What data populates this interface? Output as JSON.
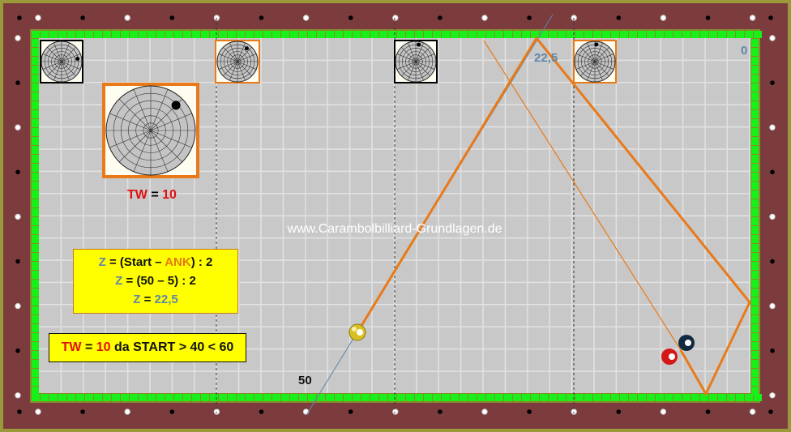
{
  "watermark": "www.Carambolbilliard-Grundlagen.de",
  "labels": {
    "target": "22,5",
    "zero": "0",
    "start": "50"
  },
  "tw_label": {
    "tw": "TW",
    "eq": " = ",
    "value": "10"
  },
  "formula_box": {
    "line1": {
      "z": "Z",
      "a": " = (Start – ",
      "ank": "ANK",
      "b": ") : 2"
    },
    "line2": {
      "z": "Z",
      "a": " = (50 – 5) : 2"
    },
    "line3": {
      "z": "Z",
      "a": " = ",
      "value": "22,5"
    }
  },
  "tw_box": {
    "tw": "TW",
    "eq": " = ",
    "value": "10",
    "rest": " da START > 40 < 60"
  },
  "balls": [
    {
      "name": "cue-ball",
      "color": "yellow",
      "number": "1"
    },
    {
      "name": "red-ball",
      "color": "red",
      "number": "3"
    },
    {
      "name": "black-ball",
      "color": "navy",
      "number": "8"
    }
  ],
  "colors": {
    "rail": "#7c3c3e",
    "cushion": "#19f019",
    "cloth": "#c8c8c8",
    "path": "#e87a1a",
    "aim_line": "#5f86a8",
    "z_text": "#5f86a8",
    "tw_text": "#e01010"
  }
}
